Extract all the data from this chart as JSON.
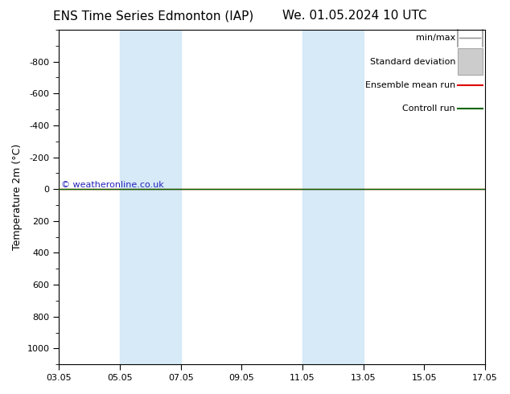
{
  "title_left": "ENS Time Series Edmonton (IAP)",
  "title_right": "We. 01.05.2024 10 UTC",
  "ylabel": "Temperature 2m (°C)",
  "xlim_num": [
    0,
    14
  ],
  "ylim_top": -1000,
  "ylim_bottom": 1100,
  "yticks": [
    -800,
    -600,
    -400,
    -200,
    0,
    200,
    400,
    600,
    800,
    1000
  ],
  "xtick_labels": [
    "03.05",
    "05.05",
    "07.05",
    "09.05",
    "11.05",
    "13.05",
    "15.05",
    "17.05"
  ],
  "xtick_positions": [
    0,
    2,
    4,
    6,
    8,
    10,
    12,
    14
  ],
  "shaded_bands": [
    {
      "x_start": 2,
      "x_end": 4
    },
    {
      "x_start": 8,
      "x_end": 10
    }
  ],
  "shaded_color": "#d6eaf7",
  "line_y": 0,
  "line_color_red": "#dd0000",
  "line_color_green": "#006600",
  "background_color": "#ffffff",
  "watermark_text": "© weatheronline.co.uk",
  "watermark_color": "#2222bb",
  "legend_items": [
    {
      "label": "min/max",
      "color": "#999999",
      "style": "range"
    },
    {
      "label": "Standard deviation",
      "color": "#cccccc",
      "style": "box"
    },
    {
      "label": "Ensemble mean run",
      "color": "#dd0000",
      "style": "line"
    },
    {
      "label": "Controll run",
      "color": "#006600",
      "style": "line"
    }
  ],
  "title_fontsize": 11,
  "axis_fontsize": 9,
  "tick_fontsize": 8,
  "legend_fontsize": 8
}
